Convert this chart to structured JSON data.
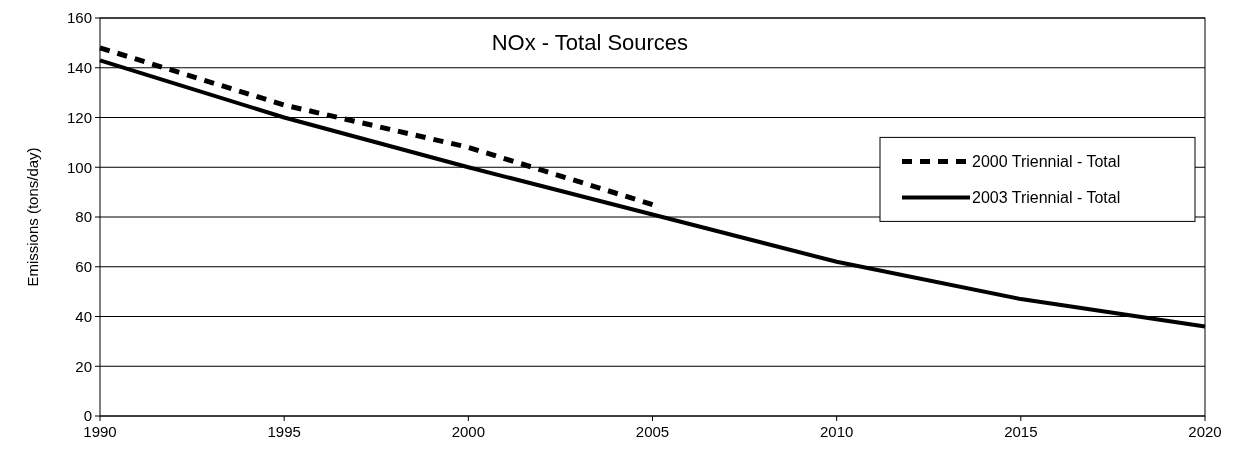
{
  "chart_data": {
    "type": "line",
    "title": "NOx - Total Sources",
    "ylabel": "Emissions (tons/day)",
    "x": [
      1990,
      1995,
      2000,
      2005,
      2010,
      2015,
      2020
    ],
    "series": [
      {
        "name": "2000 Triennial - Total",
        "color": "#000000",
        "line_style": "dashed",
        "values": [
          148,
          125,
          108,
          85,
          null,
          null,
          null
        ]
      },
      {
        "name": "2003 Triennial - Total",
        "color": "#000000",
        "line_style": "solid",
        "values": [
          143,
          120,
          100,
          81,
          62,
          47,
          36
        ]
      }
    ],
    "xlim": [
      1990,
      2020
    ],
    "xticks": [
      1990,
      1995,
      2000,
      2005,
      2010,
      2015,
      2020
    ],
    "ylim": [
      0,
      160
    ],
    "yticks": [
      0,
      20,
      40,
      60,
      80,
      100,
      120,
      140,
      160
    ],
    "grid": "y",
    "legend": "right",
    "marker": "none"
  }
}
